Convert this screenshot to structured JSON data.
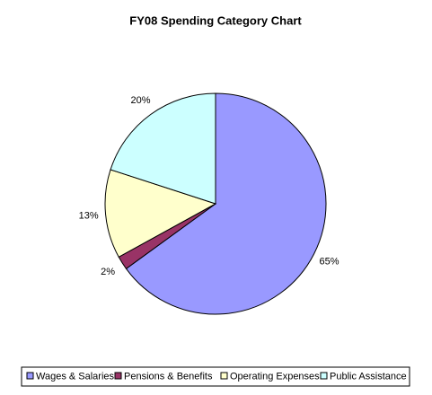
{
  "chart_data": {
    "type": "pie",
    "title": "FY08 Spending Category Chart",
    "categories": [
      "Wages & Salaries",
      "Pensions & Benefits",
      "Operating Expenses",
      "Public Assistance"
    ],
    "values": [
      65,
      2,
      13,
      20
    ],
    "value_labels": [
      "65%",
      "2%",
      "13%",
      "20%"
    ],
    "colors": [
      "#9999ff",
      "#993366",
      "#ffffcc",
      "#ccffff"
    ]
  }
}
